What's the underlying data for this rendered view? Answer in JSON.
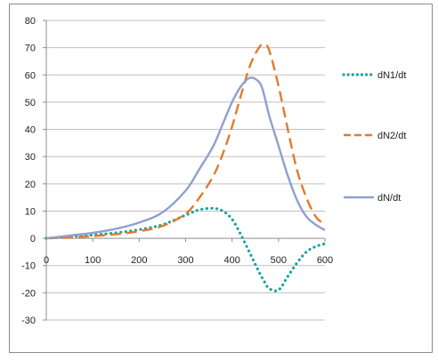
{
  "chart_data": {
    "type": "line",
    "title": "",
    "xlabel": "",
    "ylabel": "",
    "xlim": [
      0,
      600
    ],
    "ylim": [
      -30,
      80
    ],
    "x_ticks": [
      0,
      100,
      200,
      300,
      400,
      500,
      600
    ],
    "y_ticks": [
      -30,
      -20,
      -10,
      0,
      10,
      20,
      30,
      40,
      50,
      60,
      70,
      80
    ],
    "grid": "horizontal",
    "legend_position": "right",
    "x": [
      0,
      50,
      100,
      150,
      200,
      250,
      300,
      330,
      360,
      380,
      400,
      420,
      440,
      460,
      470,
      480,
      500,
      520,
      540,
      560,
      580,
      600
    ],
    "series": [
      {
        "name": "dN1/dt",
        "style": "dotted",
        "color": "#1aa2a2",
        "values": [
          0,
          0.6,
          1.2,
          2,
          3.2,
          5,
          8.5,
          10.5,
          11,
          10,
          7,
          1,
          -6,
          -13,
          -16,
          -18.5,
          -19,
          -14,
          -9,
          -5,
          -3,
          -2
        ]
      },
      {
        "name": "dN2/dt",
        "style": "dashed",
        "color": "#e27b2c",
        "values": [
          0,
          0.3,
          0.8,
          1.5,
          2.6,
          4.5,
          9,
          15,
          23,
          31,
          41,
          53,
          64,
          70.5,
          71,
          69,
          56,
          40,
          25,
          15,
          8,
          5
        ]
      },
      {
        "name": "dN/dt",
        "style": "solid",
        "color": "#8fa0cd",
        "values": [
          0,
          1,
          2,
          3.5,
          5.8,
          9.5,
          17.5,
          25.5,
          34,
          42,
          50,
          56,
          59,
          57,
          52,
          45,
          34,
          23,
          14,
          8,
          5,
          3
        ]
      }
    ]
  }
}
